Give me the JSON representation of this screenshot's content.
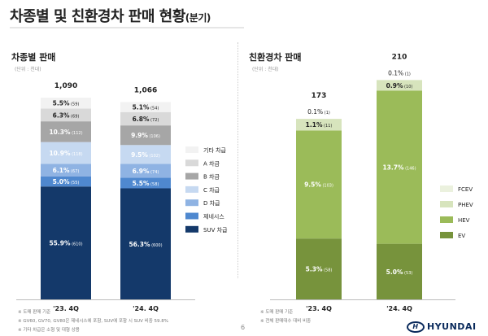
{
  "title": "차종별 및 친환경차 판매 현황",
  "title_suffix": "(분기)",
  "page_number": "6",
  "logo_text": "HYUNDAI",
  "chart_data": [
    {
      "type": "stacked-bar",
      "title": "차종별 판매",
      "unit": "(단위 : 천대)",
      "categories": [
        "'23. 4Q",
        "'24. 4Q"
      ],
      "totals": [
        "1,090",
        "1,066"
      ],
      "legend_placement": "right",
      "series": [
        {
          "name": "SUV 차급",
          "color": "#14396a",
          "text": "#ffffff",
          "values": [
            610,
            600
          ],
          "pct": [
            "55.9%",
            "56.3%"
          ]
        },
        {
          "name": "제네시스",
          "color": "#4f88cf",
          "text": "#ffffff",
          "values": [
            55,
            58
          ],
          "pct": [
            "5.0%",
            "5.5%"
          ]
        },
        {
          "name": "D 차급",
          "color": "#8fb3e3",
          "text": "#ffffff",
          "values": [
            67,
            74
          ],
          "pct": [
            "6.1%",
            "6.9%"
          ]
        },
        {
          "name": "C 차급",
          "color": "#c6d9f1",
          "text": "#ffffff",
          "values": [
            118,
            102
          ],
          "pct": [
            "10.9%",
            "9.5%"
          ]
        },
        {
          "name": "B 차급",
          "color": "#a6a6a6",
          "text": "#ffffff",
          "values": [
            112,
            106
          ],
          "pct": [
            "10.3%",
            "9.9%"
          ]
        },
        {
          "name": "A 차급",
          "color": "#d9d9d9",
          "text": "#222222",
          "values": [
            69,
            72
          ],
          "pct": [
            "6.3%",
            "6.8%"
          ]
        },
        {
          "name": "기타 차급",
          "color": "#f2f2f2",
          "text": "#222222",
          "values": [
            59,
            54
          ],
          "pct": [
            "5.5%",
            "5.1%"
          ]
        }
      ],
      "notes": [
        "※ 도매 판매 기준",
        "※ GV60, GV70, GV80은 제네시스에 포함, SUV에 포함 시 SUV 비중 59.8%",
        "※ 기타 차급은 소형 및 대형 상용"
      ]
    },
    {
      "type": "stacked-bar",
      "title": "친환경차 판매",
      "unit": "(단위 : 천대)",
      "categories": [
        "'23. 4Q",
        "'24. 4Q"
      ],
      "totals": [
        "173",
        "210"
      ],
      "legend_placement": "right",
      "series": [
        {
          "name": "EV",
          "color": "#77933c",
          "text": "#ffffff",
          "values": [
            58,
            53
          ],
          "pct": [
            "5.3%",
            "5.0%"
          ]
        },
        {
          "name": "HEV",
          "color": "#9bbb59",
          "text": "#ffffff",
          "values": [
            103,
            146
          ],
          "pct": [
            "9.5%",
            "13.7%"
          ]
        },
        {
          "name": "PHEV",
          "color": "#d7e4bd",
          "text": "#222222",
          "values": [
            11,
            10
          ],
          "pct": [
            "1.1%",
            "0.9%"
          ]
        },
        {
          "name": "FCEV",
          "color": "#ebf1de",
          "text": "#222222",
          "values": [
            1,
            1
          ],
          "pct": [
            "0.1%",
            "0.1%"
          ]
        }
      ],
      "notes": [
        "※ 도매 판매 기준",
        "※ 전체 판매대수 대비 비중"
      ]
    }
  ]
}
